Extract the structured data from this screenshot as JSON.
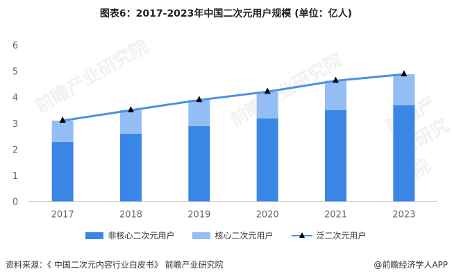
{
  "chart_data": {
    "type": "bar",
    "stacked": true,
    "title": "图表6：2017-2023年中国二次元用户规模 (单位：亿人)",
    "categories": [
      "2017",
      "2018",
      "2019",
      "2020",
      "2021",
      "2023"
    ],
    "series": [
      {
        "name": "非核心二次元用户",
        "type": "bar",
        "color": "#3a86e6",
        "values": [
          2.28,
          2.6,
          2.89,
          3.18,
          3.5,
          3.69
        ]
      },
      {
        "name": "核心二次元用户",
        "type": "bar",
        "color": "#93bdf5",
        "values": [
          0.82,
          0.9,
          1.0,
          1.03,
          1.13,
          1.19
        ]
      },
      {
        "name": "泛二次元用户",
        "type": "line",
        "color": "#4a90e2",
        "marker": "triangle",
        "values": [
          3.1,
          3.5,
          3.89,
          4.21,
          4.63,
          4.88
        ]
      }
    ],
    "ylim": [
      0,
      6
    ],
    "yticks": [
      "0",
      "1",
      "2",
      "3",
      "4",
      "5",
      "6"
    ],
    "grid": false,
    "legend_position": "bottom"
  },
  "footer": {
    "source": "资料来源：《 中国二次元内容行业白皮书》 前瞻产业研究院",
    "brand": "@前瞻经济学人APP"
  },
  "watermark": "前瞻产业研究院"
}
